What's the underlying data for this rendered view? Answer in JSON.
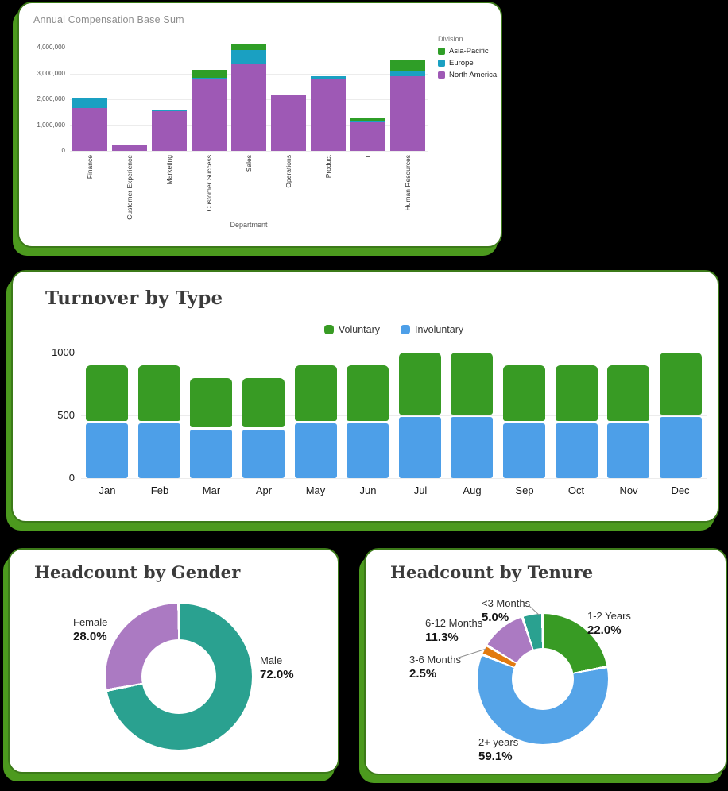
{
  "colors": {
    "background": "#000000",
    "card_background": "#ffffff",
    "card_border": "#3c7a19",
    "card_shadow": "#4c9a1e",
    "gridline": "#ececec",
    "muted_title": "#8e8e8e",
    "serif_title": "#3b3b3b",
    "leader_line": "#8f8f8f"
  },
  "chart_data": [
    {
      "id": "compensation",
      "type": "bar",
      "stacked": true,
      "title": "Annual Compensation Base Sum",
      "xlabel": "Department",
      "legend_title": "Division",
      "legend_position": "right",
      "grid": true,
      "categories": [
        "Finance",
        "Customer Experience",
        "Marketing",
        "Customer Success",
        "Sales",
        "Operations",
        "Product",
        "IT",
        "Human Resources"
      ],
      "series": [
        {
          "name": "North America",
          "color": "#9e59b5",
          "values": [
            1650000,
            250000,
            1550000,
            2760000,
            3350000,
            2150000,
            2800000,
            1100000,
            2900000
          ]
        },
        {
          "name": "Europe",
          "color": "#1aa0c2",
          "values": [
            400000,
            0,
            60000,
            50000,
            550000,
            0,
            100000,
            50000,
            170000
          ]
        },
        {
          "name": "Asia-Pacific",
          "color": "#2f9e27",
          "values": [
            0,
            0,
            0,
            300000,
            200000,
            0,
            0,
            110000,
            430000
          ]
        }
      ],
      "legend_order": [
        "Asia-Pacific",
        "Europe",
        "North America"
      ],
      "ylim": [
        0,
        4000000
      ],
      "yticks": [
        {
          "v": 0,
          "label": "0"
        },
        {
          "v": 1000000,
          "label": "1,000,000"
        },
        {
          "v": 2000000,
          "label": "2,000,000"
        },
        {
          "v": 3000000,
          "label": "3,000,000"
        },
        {
          "v": 4000000,
          "label": "4,000,000"
        }
      ]
    },
    {
      "id": "turnover",
      "type": "bar",
      "stacked": true,
      "title": "Turnover by Type",
      "legend_position": "top-center",
      "grid": true,
      "categories": [
        "Jan",
        "Feb",
        "Mar",
        "Apr",
        "May",
        "Jun",
        "Jul",
        "Aug",
        "Sep",
        "Oct",
        "Nov",
        "Dec"
      ],
      "series": [
        {
          "name": "Involuntary",
          "color": "#4d9fe8",
          "values": [
            450,
            450,
            400,
            400,
            450,
            450,
            500,
            500,
            450,
            450,
            450,
            500
          ]
        },
        {
          "name": "Voluntary",
          "color": "#389b24",
          "values": [
            450,
            450,
            400,
            400,
            450,
            450,
            500,
            500,
            450,
            450,
            450,
            500
          ]
        }
      ],
      "legend_order": [
        "Voluntary",
        "Involuntary"
      ],
      "ylim": [
        0,
        1000
      ],
      "yticks": [
        {
          "v": 0,
          "label": "0"
        },
        {
          "v": 500,
          "label": "500"
        },
        {
          "v": 1000,
          "label": "1000"
        }
      ]
    },
    {
      "id": "gender",
      "type": "pie",
      "title": "Headcount by Gender",
      "start_angle_deg": 0,
      "segments": [
        {
          "label": "Male",
          "pct": 72.0,
          "pct_label": "72.0%",
          "color": "#2aa190"
        },
        {
          "label": "Female",
          "pct": 28.0,
          "pct_label": "28.0%",
          "color": "#ab7ac2"
        }
      ]
    },
    {
      "id": "tenure",
      "type": "pie",
      "title": "Headcount by Tenure",
      "start_angle_deg": 0,
      "segments": [
        {
          "label": "1-2 Years",
          "pct": 22.0,
          "pct_label": "22.0%",
          "color": "#389b24"
        },
        {
          "label": "2+ years",
          "pct": 59.1,
          "pct_label": "59.1%",
          "color": "#55a4e8"
        },
        {
          "label": "3-6 Months",
          "pct": 2.5,
          "pct_label": "2.5%",
          "color": "#e27a10"
        },
        {
          "label": "6-12 Months",
          "pct": 11.3,
          "pct_label": "11.3%",
          "color": "#ab7ac2"
        },
        {
          "label": "<3 Months",
          "pct": 5.0,
          "pct_label": "5.0%",
          "color": "#2aa190"
        }
      ]
    }
  ]
}
